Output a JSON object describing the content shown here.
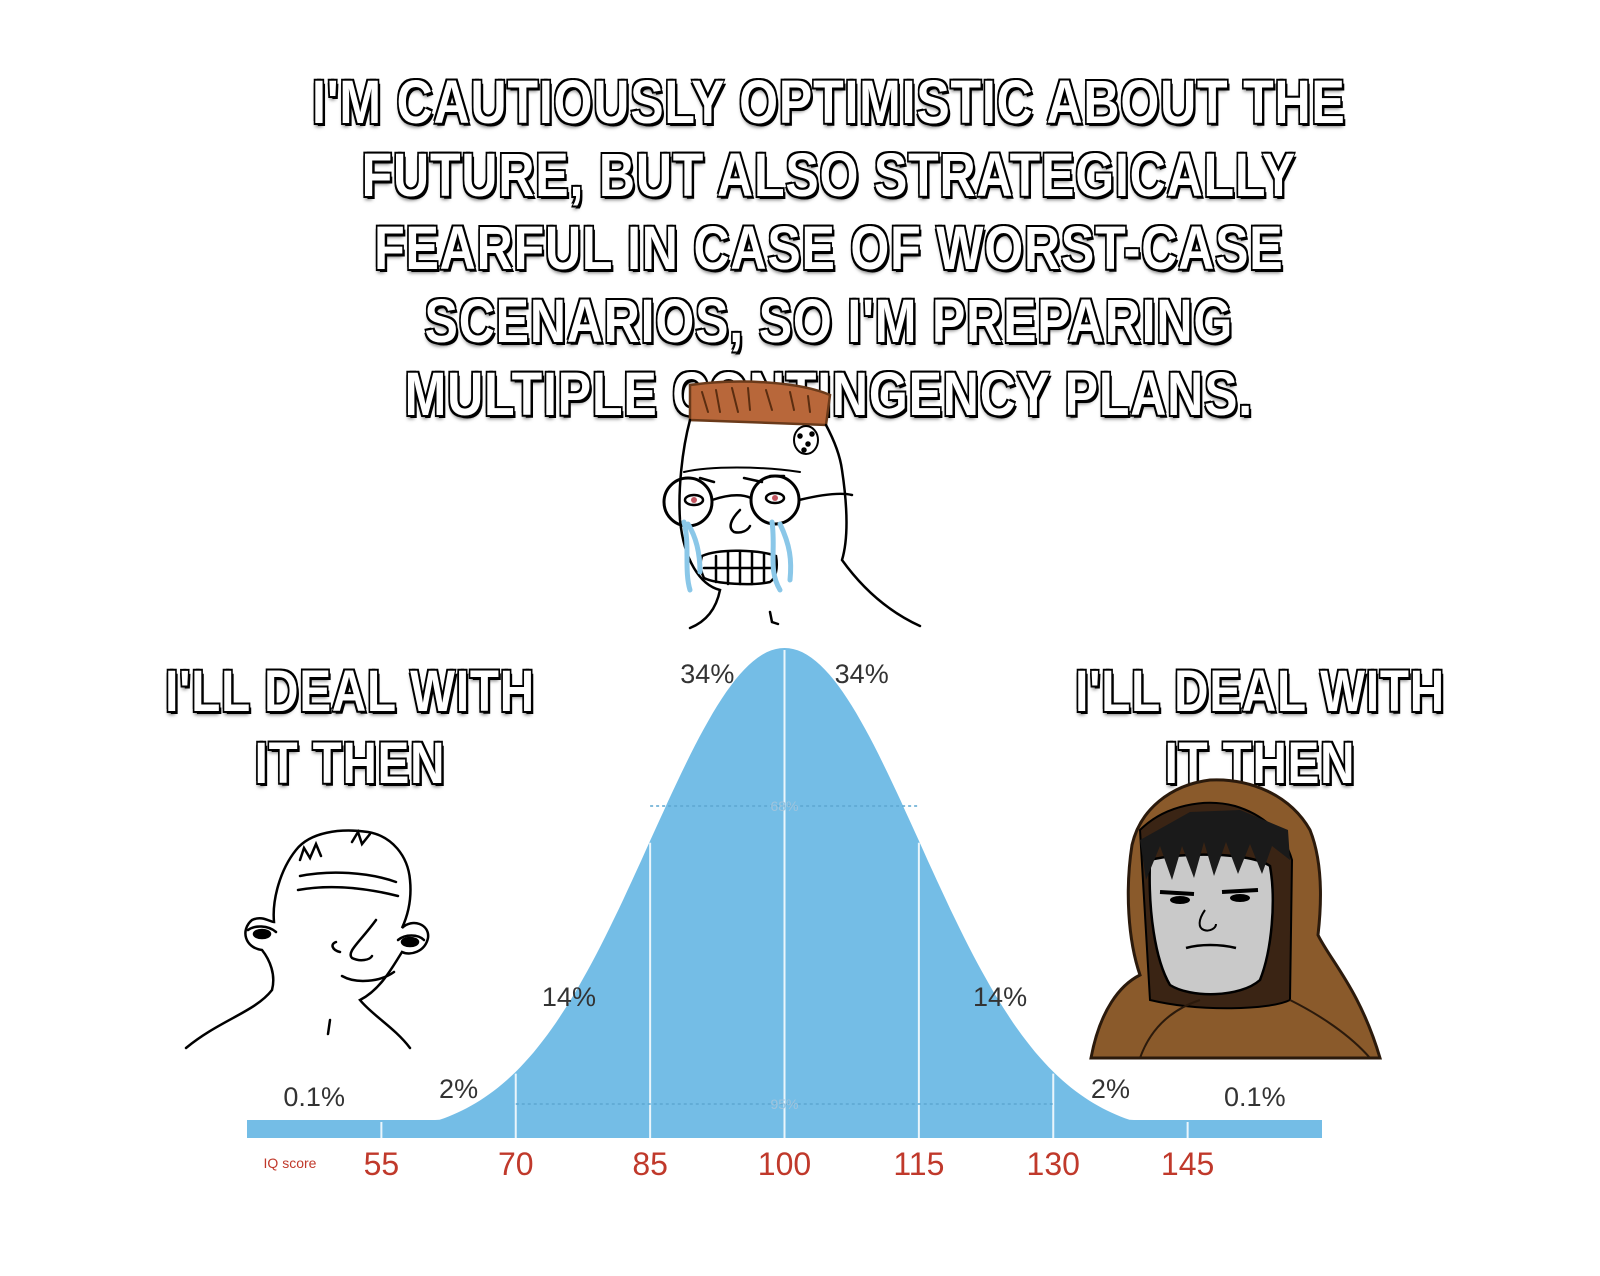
{
  "caption": "I'M CAUTIOUSLY OPTIMISTIC ABOUT THE FUTURE, BUT ALSO STRATEGICALLY FEARFUL IN CASE OF WORST-CASE SCENARIOS, SO I'M PREPARING MULTIPLE CONTINGENCY PLANS.",
  "left_label": "I'LL DEAL WITH IT THEN",
  "right_label": "I'LL DEAL WITH IT THEN",
  "colors": {
    "curve": "#74bde6",
    "tick_text": "#c0392b",
    "hood": "#8a5a2b"
  },
  "characters": [
    "low-iq-wojak-drawing",
    "crying-glasses-wojak-drawing",
    "hooded-monk-wojak-drawing"
  ],
  "chart_data": {
    "type": "area",
    "distribution": "normal",
    "mean": 100,
    "sd": 15,
    "xlim": [
      40,
      160
    ],
    "x_axis_label": "IQ score",
    "x_ticks": [
      "55",
      "70",
      "85",
      "100",
      "115",
      "130",
      "145"
    ],
    "region_percentages": [
      {
        "label": "0.1%",
        "from": 40,
        "to": 55
      },
      {
        "label": "2%",
        "from": 55,
        "to": 70
      },
      {
        "label": "14%",
        "from": 70,
        "to": 85
      },
      {
        "label": "34%",
        "from": 85,
        "to": 100
      },
      {
        "label": "34%",
        "from": 100,
        "to": 115
      },
      {
        "label": "14%",
        "from": 115,
        "to": 130
      },
      {
        "label": "2%",
        "from": 130,
        "to": 145
      },
      {
        "label": "0.1%",
        "from": 145,
        "to": 160
      }
    ],
    "bands": [
      {
        "label": "68%",
        "from": 85,
        "to": 115
      },
      {
        "label": "95%",
        "from": 70,
        "to": 130
      }
    ]
  }
}
